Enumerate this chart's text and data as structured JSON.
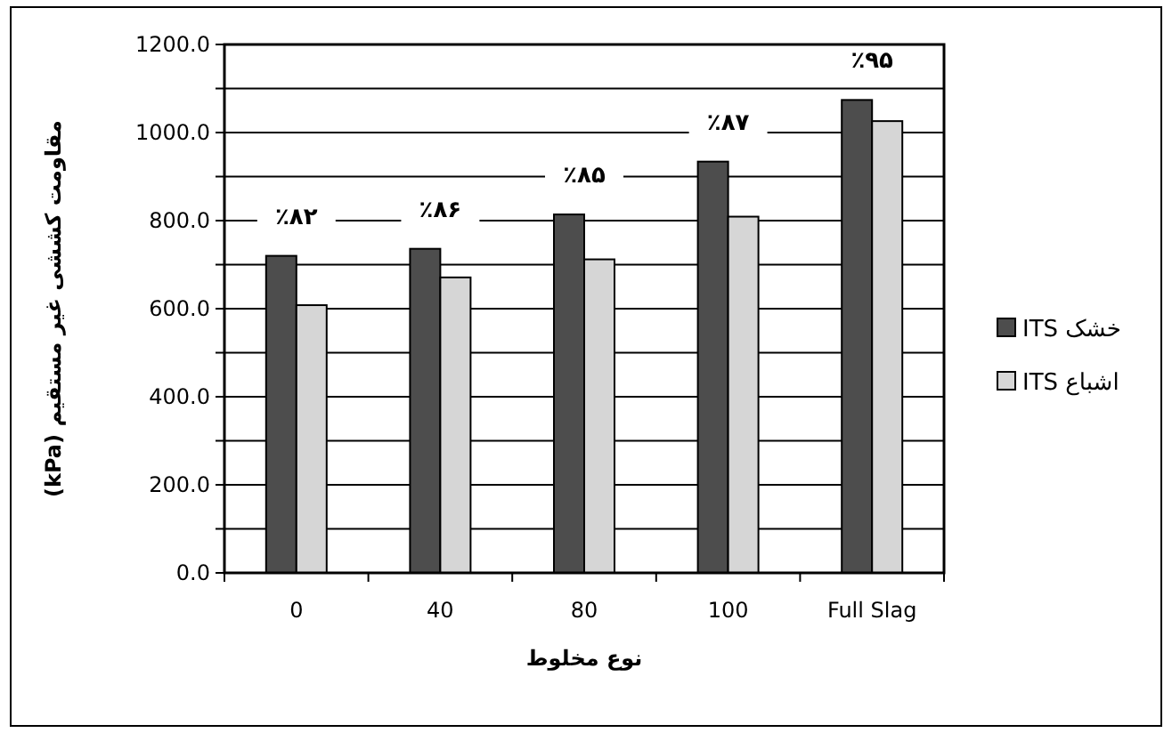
{
  "chart_data": {
    "type": "bar",
    "xlabel": "نوع مخلوط",
    "ylabel": "مقاومت کششی غیر مستقیم (kPa)",
    "categories": [
      "0",
      "40",
      "80",
      "100",
      "Full Slag"
    ],
    "series": [
      {
        "name": "خشک ITS",
        "color": "#4d4d4d",
        "values": [
          720,
          736,
          814,
          934,
          1074
        ]
      },
      {
        "name": "اشباع ITS",
        "color": "#d6d6d6",
        "values": [
          608,
          671,
          712,
          809,
          1026
        ]
      }
    ],
    "ylim": [
      0,
      1200
    ],
    "yticks": [
      {
        "value": 0,
        "label": "0.0"
      },
      {
        "value": 100,
        "label": null
      },
      {
        "value": 200,
        "label": "200.0"
      },
      {
        "value": 300,
        "label": null
      },
      {
        "value": 400,
        "label": "400.0"
      },
      {
        "value": 500,
        "label": null
      },
      {
        "value": 600,
        "label": "600.0"
      },
      {
        "value": 700,
        "label": null
      },
      {
        "value": 800,
        "label": "800.0"
      },
      {
        "value": 900,
        "label": null
      },
      {
        "value": 1000,
        "label": "1000.0"
      },
      {
        "value": 1100,
        "label": null
      },
      {
        "value": 1200,
        "label": "1200.0"
      }
    ],
    "grid": "y",
    "legend": "right",
    "annotations": [
      "٪۸۲",
      "٪۸۶",
      "٪۸۵",
      "٪۸۷",
      "٪۹۵"
    ]
  }
}
